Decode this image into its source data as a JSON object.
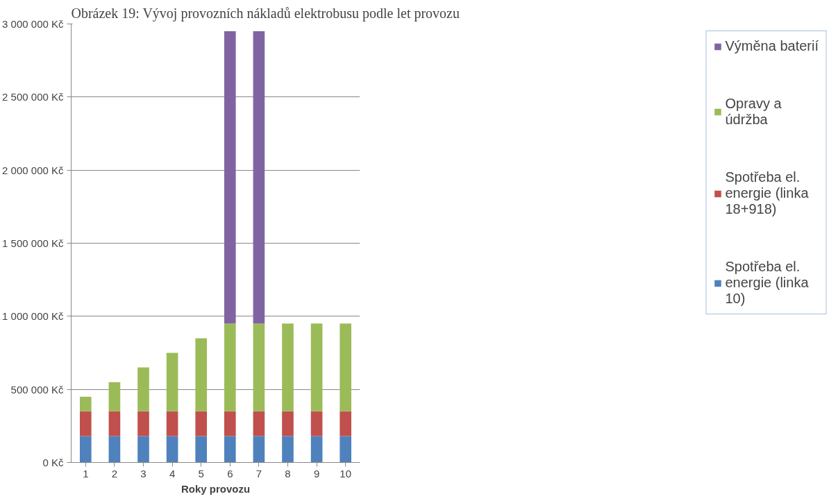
{
  "chart_data": {
    "type": "bar",
    "title": "Obrázek 19: Vývoj provozních nákladů elektrobusu podle let provozu",
    "xlabel": "Roky provozu",
    "categories": [
      "1",
      "2",
      "3",
      "4",
      "5",
      "6",
      "7",
      "8",
      "9",
      "10"
    ],
    "stacked": true,
    "series": [
      {
        "name": "Spotřeba el. energie (linka 10)",
        "color": "#4f81bd",
        "values": [
          180000,
          180000,
          180000,
          180000,
          180000,
          180000,
          180000,
          180000,
          180000,
          180000
        ]
      },
      {
        "name": "Spotřeba el. energie (linka 18+918)",
        "color": "#c0504d",
        "values": [
          170000,
          170000,
          170000,
          170000,
          170000,
          170000,
          170000,
          170000,
          170000,
          170000
        ]
      },
      {
        "name": "Opravy a údržba",
        "color": "#9bbb59",
        "values": [
          100000,
          200000,
          300000,
          400000,
          500000,
          600000,
          600000,
          600000,
          600000,
          600000
        ]
      },
      {
        "name": "Výměna baterií",
        "color": "#8064a2",
        "values": [
          0,
          0,
          0,
          0,
          0,
          2000000,
          2000000,
          0,
          0,
          0
        ]
      }
    ],
    "ylim": [
      0,
      3000000
    ],
    "yticks": [
      {
        "value": 0,
        "label": "0 Kč"
      },
      {
        "value": 500000,
        "label": "500 000 Kč"
      },
      {
        "value": 1000000,
        "label": "1 000 000 Kč"
      },
      {
        "value": 1500000,
        "label": "1 500 000 Kč"
      },
      {
        "value": 2000000,
        "label": "2 000 000 Kč"
      },
      {
        "value": 2500000,
        "label": "2 500 000 Kč"
      },
      {
        "value": 3000000,
        "label": "3 000 000 Kč"
      }
    ],
    "grid": "y",
    "legend": "right"
  }
}
